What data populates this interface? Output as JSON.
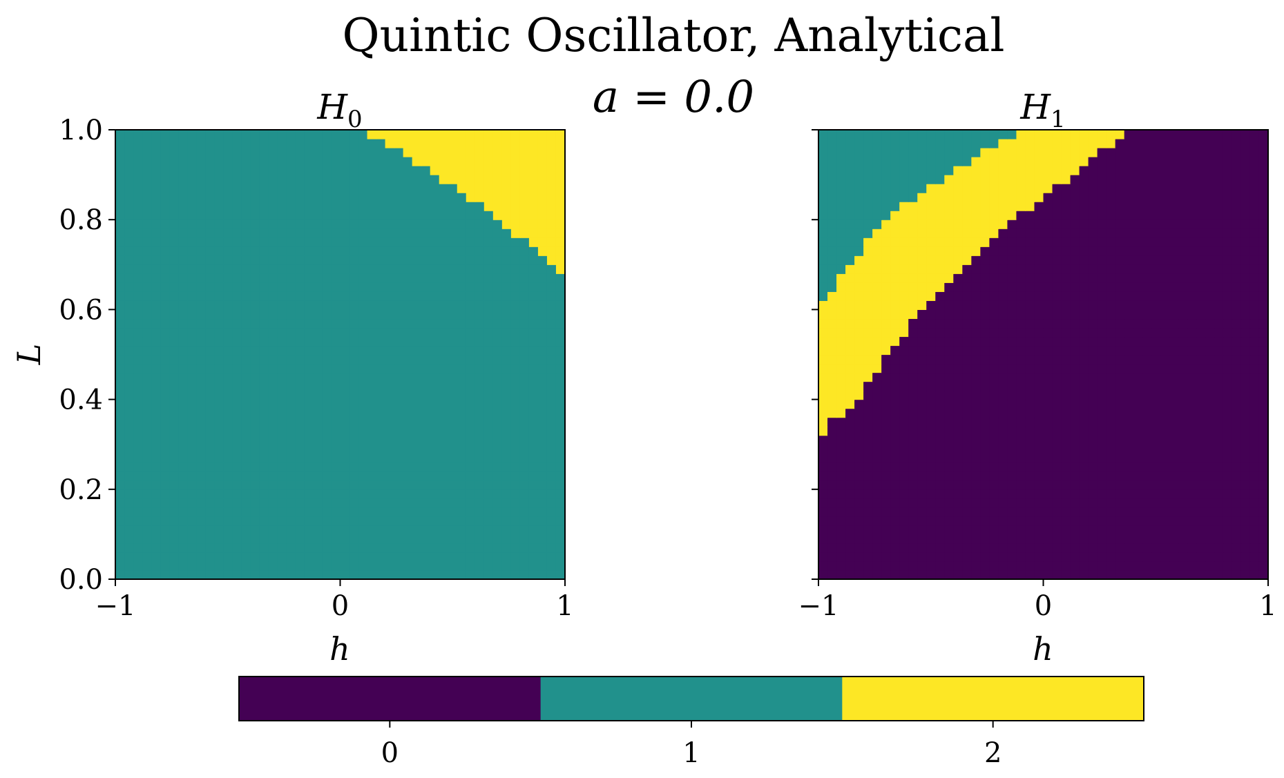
{
  "figure": {
    "title": "Quintic Oscillator, Analytical",
    "subtitle": "a = 0.0"
  },
  "colormap": {
    "0": "#440154",
    "1": "#21918c",
    "2": "#fde725"
  },
  "chart_data": [
    {
      "type": "heatmap",
      "title": "H",
      "title_subscript": "0",
      "xlabel": "h",
      "ylabel": "L",
      "xlim": [
        -1,
        1
      ],
      "ylim": [
        0,
        1
      ],
      "x_ticks": [
        "−1",
        "0",
        "1"
      ],
      "y_ticks": [
        "0.0",
        "0.2",
        "0.4",
        "0.6",
        "0.8",
        "1.0"
      ],
      "grid": false,
      "regions": [
        {
          "value": 1,
          "description": "everywhere except upper-right corner"
        },
        {
          "value": 2,
          "boundary_L_vs_h": [
            [
              0.06,
              1.0
            ],
            [
              0.2,
              0.97
            ],
            [
              0.4,
              0.91
            ],
            [
              0.6,
              0.84
            ],
            [
              0.8,
              0.76
            ],
            [
              1.0,
              0.68
            ]
          ],
          "side": "above"
        }
      ]
    },
    {
      "type": "heatmap",
      "title": "H",
      "title_subscript": "1",
      "xlabel": "h",
      "ylabel": "",
      "xlim": [
        -1,
        1
      ],
      "ylim": [
        0,
        1
      ],
      "x_ticks": [
        "−1",
        "0",
        "1"
      ],
      "y_ticks": [],
      "grid": false,
      "regions": [
        {
          "value": 1,
          "boundary_L_vs_h": [
            [
              -1.0,
              0.61
            ],
            [
              -0.8,
              0.74
            ],
            [
              -0.6,
              0.84
            ],
            [
              -0.4,
              0.91
            ],
            [
              -0.2,
              0.97
            ],
            [
              -0.1,
              1.0
            ]
          ],
          "side": "above"
        },
        {
          "value": 2,
          "description": "band between the two boundaries"
        },
        {
          "value": 0,
          "boundary_L_vs_h": [
            [
              -1.0,
              0.32
            ],
            [
              -0.8,
              0.42
            ],
            [
              -0.6,
              0.56
            ],
            [
              -0.4,
              0.67
            ],
            [
              -0.2,
              0.78
            ],
            [
              0.0,
              0.85
            ],
            [
              0.2,
              0.93
            ],
            [
              0.4,
              1.0
            ]
          ],
          "side": "below"
        }
      ]
    }
  ],
  "colorbar": {
    "ticks": [
      "0",
      "1",
      "2"
    ],
    "values": [
      0,
      1,
      2
    ]
  }
}
